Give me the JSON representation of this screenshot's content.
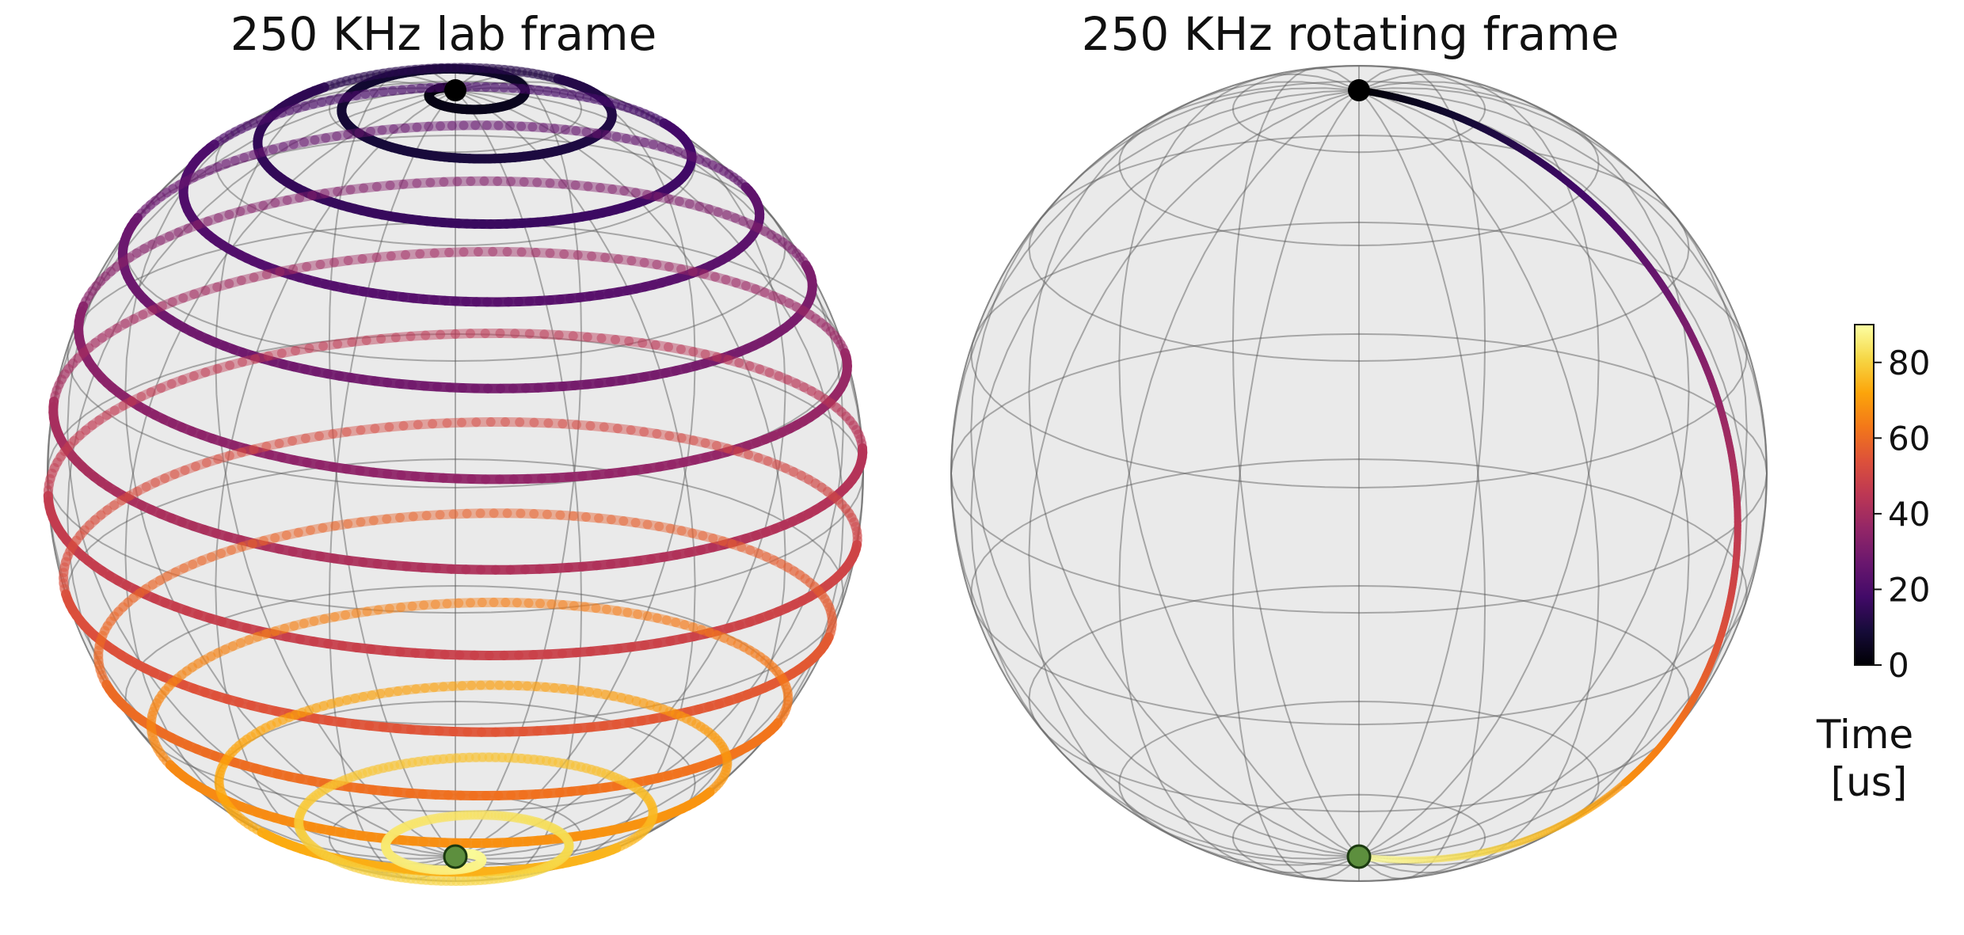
{
  "chart_data": [
    {
      "type": "bloch-sphere-trajectory",
      "title": "250 KHz lab frame",
      "frame": "lab",
      "start_state": "north pole",
      "end_state": "south pole",
      "trajectory": "spiral precessing about the z-axis from north pole to south pole",
      "time_range": [
        0,
        90
      ],
      "approx_turns": 14
    },
    {
      "type": "bloch-sphere-trajectory",
      "title": "250 KHz rotating frame",
      "frame": "rotating",
      "start_state": "north pole",
      "end_state": "south pole",
      "trajectory": "single meridian arc from north pole down the right side to the south pole",
      "time_range": [
        0,
        90
      ]
    }
  ],
  "colorbar": {
    "colormap": "inferno",
    "range": [
      0,
      90
    ],
    "ticks": [
      "0",
      "20",
      "40",
      "60",
      "80"
    ],
    "label_line1": "Time",
    "label_line2": "[us]"
  },
  "colors": {
    "sphere_fill": "#e6e6e6",
    "grid": "#555555",
    "start_marker": "#000000",
    "end_marker": "#5d8f3e"
  }
}
